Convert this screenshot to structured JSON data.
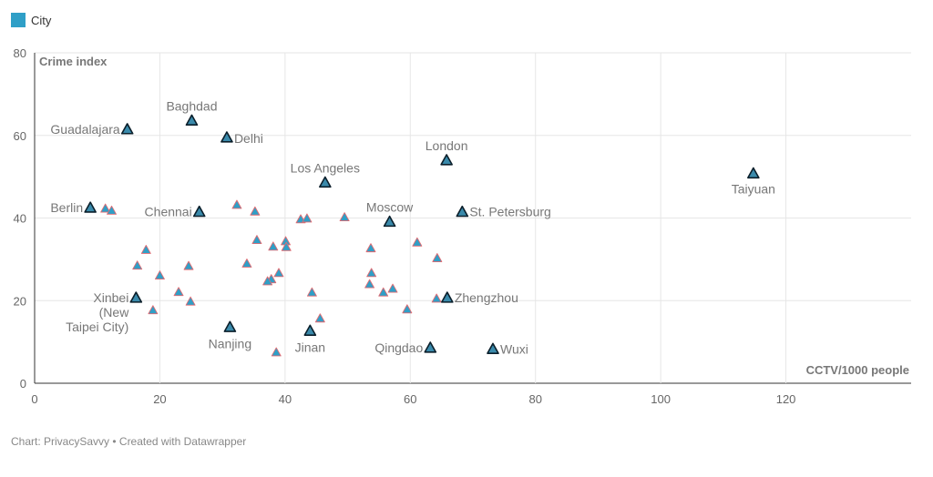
{
  "legend": {
    "label": "City",
    "color": "#2f9fc7"
  },
  "footer": {
    "text": "Chart: PrivacySavvy • Created with Datawrapper"
  },
  "chart_data": {
    "type": "scatter",
    "xlabel": "CCTV/1000 people",
    "ylabel": "Crime index",
    "xlim": [
      0,
      140
    ],
    "ylim": [
      0,
      80
    ],
    "x_ticks": [
      0,
      20,
      40,
      60,
      80,
      100,
      120
    ],
    "y_ticks": [
      0,
      20,
      40,
      60,
      80
    ],
    "grid": true,
    "legend_position": "top-left",
    "series": [
      {
        "name": "City",
        "points": [
          {
            "x": 14.8,
            "y": 61.5,
            "label": "Guadalajara"
          },
          {
            "x": 25.1,
            "y": 63.6,
            "label": "Baghdad"
          },
          {
            "x": 30.7,
            "y": 59.5,
            "label": "Delhi"
          },
          {
            "x": 65.8,
            "y": 54.0,
            "label": "London"
          },
          {
            "x": 46.4,
            "y": 48.6,
            "label": "Los Angeles"
          },
          {
            "x": 114.8,
            "y": 50.8,
            "label": "Taiyuan"
          },
          {
            "x": 8.9,
            "y": 42.5,
            "label": "Berlin"
          },
          {
            "x": 11.3,
            "y": 42.3,
            "label": ""
          },
          {
            "x": 12.3,
            "y": 41.8,
            "label": ""
          },
          {
            "x": 26.3,
            "y": 41.5,
            "label": "Chennai"
          },
          {
            "x": 32.3,
            "y": 43.2,
            "label": ""
          },
          {
            "x": 35.2,
            "y": 41.6,
            "label": ""
          },
          {
            "x": 42.5,
            "y": 39.7,
            "label": ""
          },
          {
            "x": 43.5,
            "y": 39.9,
            "label": ""
          },
          {
            "x": 49.5,
            "y": 40.2,
            "label": ""
          },
          {
            "x": 56.7,
            "y": 39.1,
            "label": "Moscow"
          },
          {
            "x": 68.3,
            "y": 41.5,
            "label": "St. Petersburg"
          },
          {
            "x": 17.8,
            "y": 32.3,
            "label": ""
          },
          {
            "x": 16.4,
            "y": 28.5,
            "label": ""
          },
          {
            "x": 20.0,
            "y": 26.1,
            "label": ""
          },
          {
            "x": 24.6,
            "y": 28.4,
            "label": ""
          },
          {
            "x": 33.9,
            "y": 29.0,
            "label": ""
          },
          {
            "x": 35.5,
            "y": 34.7,
            "label": ""
          },
          {
            "x": 38.1,
            "y": 33.1,
            "label": ""
          },
          {
            "x": 40.1,
            "y": 34.4,
            "label": ""
          },
          {
            "x": 40.2,
            "y": 33.0,
            "label": ""
          },
          {
            "x": 39.0,
            "y": 26.7,
            "label": ""
          },
          {
            "x": 37.8,
            "y": 25.2,
            "label": ""
          },
          {
            "x": 37.2,
            "y": 24.7,
            "label": ""
          },
          {
            "x": 53.7,
            "y": 32.7,
            "label": ""
          },
          {
            "x": 61.1,
            "y": 34.1,
            "label": ""
          },
          {
            "x": 64.3,
            "y": 30.3,
            "label": ""
          },
          {
            "x": 53.8,
            "y": 26.7,
            "label": ""
          },
          {
            "x": 53.5,
            "y": 24.0,
            "label": ""
          },
          {
            "x": 57.2,
            "y": 22.9,
            "label": ""
          },
          {
            "x": 55.7,
            "y": 22.0,
            "label": ""
          },
          {
            "x": 44.3,
            "y": 22.0,
            "label": ""
          },
          {
            "x": 23.0,
            "y": 22.1,
            "label": ""
          },
          {
            "x": 24.9,
            "y": 19.8,
            "label": ""
          },
          {
            "x": 18.9,
            "y": 17.7,
            "label": ""
          },
          {
            "x": 16.2,
            "y": 20.7,
            "label": "Xinbei\n(New\nTaipei City)"
          },
          {
            "x": 64.2,
            "y": 20.5,
            "label": ""
          },
          {
            "x": 65.9,
            "y": 20.7,
            "label": "Zhengzhou"
          },
          {
            "x": 59.5,
            "y": 17.9,
            "label": ""
          },
          {
            "x": 45.6,
            "y": 15.7,
            "label": ""
          },
          {
            "x": 31.2,
            "y": 13.6,
            "label": "Nanjing"
          },
          {
            "x": 44.0,
            "y": 12.7,
            "label": "Jinan"
          },
          {
            "x": 38.6,
            "y": 7.5,
            "label": ""
          },
          {
            "x": 63.2,
            "y": 8.6,
            "label": "Qingdao"
          },
          {
            "x": 73.2,
            "y": 8.3,
            "label": "Wuxi"
          }
        ]
      }
    ]
  }
}
